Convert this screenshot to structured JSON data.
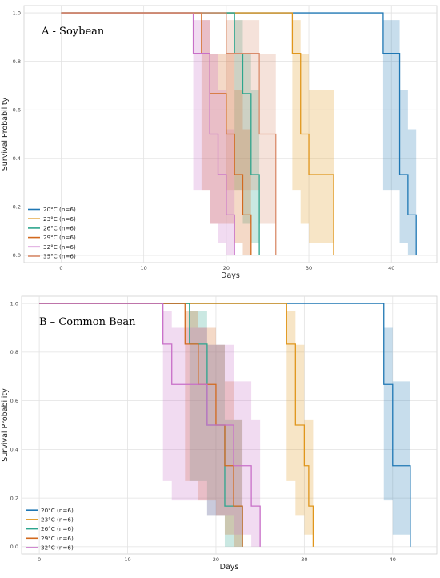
{
  "chart_data": [
    {
      "type": "line",
      "title": "A - Soybean",
      "xlabel": "Days",
      "ylabel": "Survival Probability",
      "xlim": [
        -4.5,
        45.5
      ],
      "ylim": [
        -0.03,
        1.03
      ],
      "xticks": [
        0,
        10,
        20,
        30,
        40
      ],
      "yticks": [
        0.0,
        0.2,
        0.4,
        0.6,
        0.8,
        1.0
      ],
      "grid": true,
      "legend_position": "lower-left",
      "series": [
        {
          "name": "20°C (n=6)",
          "color": "#1f77b4",
          "steps": [
            [
              0,
              1.0
            ],
            [
              39,
              0.833
            ],
            [
              41,
              0.333
            ],
            [
              42,
              0.167
            ],
            [
              43,
              0.0
            ]
          ],
          "ci": [
            [
              39,
              0.27,
              0.97
            ],
            [
              41,
              0.05,
              0.68
            ],
            [
              42,
              0.0,
              0.52
            ],
            [
              43,
              0.0,
              0.52
            ]
          ]
        },
        {
          "name": "23°C (n=6)",
          "color": "#e0961c",
          "steps": [
            [
              0,
              1.0
            ],
            [
              28,
              0.833
            ],
            [
              29,
              0.5
            ],
            [
              30,
              0.333
            ],
            [
              33,
              0.0
            ]
          ],
          "ci": [
            [
              28,
              0.27,
              0.97
            ],
            [
              29,
              0.13,
              0.83
            ],
            [
              30,
              0.05,
              0.68
            ],
            [
              33,
              0.05,
              0.68
            ]
          ]
        },
        {
          "name": "26°C (n=6)",
          "color": "#2ca58d",
          "steps": [
            [
              0,
              1.0
            ],
            [
              21,
              0.833
            ],
            [
              22,
              0.667
            ],
            [
              23,
              0.333
            ],
            [
              24,
              0.0
            ]
          ],
          "ci": [
            [
              21,
              0.27,
              0.97
            ],
            [
              22,
              0.13,
              0.83
            ],
            [
              23,
              0.05,
              0.68
            ],
            [
              24,
              0.05,
              0.68
            ]
          ]
        },
        {
          "name": "29°C (n=6)",
          "color": "#d2691e",
          "steps": [
            [
              0,
              1.0
            ],
            [
              17,
              0.833
            ],
            [
              18,
              0.667
            ],
            [
              20,
              0.5
            ],
            [
              21,
              0.333
            ],
            [
              22,
              0.167
            ],
            [
              23,
              0.0
            ]
          ],
          "ci": [
            [
              17,
              0.27,
              0.97
            ],
            [
              18,
              0.13,
              0.83
            ],
            [
              20,
              0.13,
              0.83
            ],
            [
              21,
              0.05,
              0.68
            ],
            [
              22,
              0.0,
              0.52
            ],
            [
              23,
              0.0,
              0.52
            ]
          ]
        },
        {
          "name": "32°C (n=6)",
          "color": "#c86fc8",
          "steps": [
            [
              0,
              1.0
            ],
            [
              16,
              0.833
            ],
            [
              18,
              0.5
            ],
            [
              19,
              0.333
            ],
            [
              20,
              0.167
            ],
            [
              21,
              0.0
            ]
          ],
          "ci": [
            [
              16,
              0.27,
              0.97
            ],
            [
              18,
              0.13,
              0.83
            ],
            [
              19,
              0.05,
              0.68
            ],
            [
              20,
              0.0,
              0.52
            ],
            [
              21,
              0.0,
              0.52
            ]
          ]
        },
        {
          "name": "35°C (n=6)",
          "color": "#d98b6a",
          "steps": [
            [
              0,
              1.0
            ],
            [
              20,
              0.833
            ],
            [
              24,
              0.5
            ],
            [
              26,
              0.0
            ]
          ],
          "ci": [
            [
              20,
              0.27,
              0.97
            ],
            [
              24,
              0.13,
              0.83
            ],
            [
              26,
              0.13,
              0.83
            ]
          ]
        }
      ]
    },
    {
      "type": "line",
      "title": "B – Common Bean",
      "xlabel": "Days",
      "ylabel": "Survival Probability",
      "xlim": [
        -2,
        45
      ],
      "ylim": [
        -0.03,
        1.03
      ],
      "xticks": [
        0,
        10,
        20,
        30,
        40
      ],
      "yticks": [
        0.0,
        0.2,
        0.4,
        0.6,
        0.8,
        1.0
      ],
      "grid": true,
      "legend_position": "lower-left",
      "series": [
        {
          "name": "20°C (n=6)",
          "color": "#1f77b4",
          "steps": [
            [
              0,
              1.0
            ],
            [
              39,
              0.667
            ],
            [
              40,
              0.333
            ],
            [
              42,
              0.0
            ]
          ],
          "ci": [
            [
              39,
              0.19,
              0.9
            ],
            [
              40,
              0.05,
              0.68
            ],
            [
              42,
              0.05,
              0.68
            ]
          ]
        },
        {
          "name": "23°C (n=6)",
          "color": "#e0961c",
          "steps": [
            [
              0,
              1.0
            ],
            [
              28,
              0.833
            ],
            [
              29,
              0.5
            ],
            [
              30,
              0.333
            ],
            [
              30.5,
              0.167
            ],
            [
              31,
              0.0
            ]
          ],
          "ci": [
            [
              28,
              0.27,
              0.97
            ],
            [
              29,
              0.13,
              0.83
            ],
            [
              30,
              0.05,
              0.52
            ],
            [
              31,
              0.05,
              0.52
            ]
          ]
        },
        {
          "name": "26°C (n=6)",
          "color": "#2ca58d",
          "steps": [
            [
              0,
              1.0
            ],
            [
              17,
              0.833
            ],
            [
              19,
              0.5
            ],
            [
              21,
              0.167
            ],
            [
              23,
              0.0
            ]
          ],
          "ci": [
            [
              17,
              0.27,
              0.97
            ],
            [
              19,
              0.13,
              0.83
            ],
            [
              21,
              0.0,
              0.52
            ],
            [
              23,
              0.0,
              0.52
            ]
          ]
        },
        {
          "name": "29°C (n=6)",
          "color": "#d2691e",
          "steps": [
            [
              0,
              1.0
            ],
            [
              16.5,
              0.833
            ],
            [
              18,
              0.667
            ],
            [
              20,
              0.5
            ],
            [
              21,
              0.333
            ],
            [
              22,
              0.167
            ],
            [
              23,
              0.0
            ]
          ],
          "ci": [
            [
              16.5,
              0.27,
              0.97
            ],
            [
              18,
              0.19,
              0.9
            ],
            [
              20,
              0.13,
              0.83
            ],
            [
              21,
              0.05,
              0.68
            ],
            [
              22,
              0.0,
              0.52
            ],
            [
              23,
              0.0,
              0.52
            ]
          ]
        },
        {
          "name": "32°C (n=6)",
          "color": "#c86fc8",
          "steps": [
            [
              0,
              1.0
            ],
            [
              14,
              0.833
            ],
            [
              15,
              0.667
            ],
            [
              19,
              0.5
            ],
            [
              22,
              0.333
            ],
            [
              24,
              0.167
            ],
            [
              25,
              0.0
            ]
          ],
          "ci": [
            [
              14,
              0.27,
              0.97
            ],
            [
              15,
              0.19,
              0.9
            ],
            [
              19,
              0.13,
              0.83
            ],
            [
              22,
              0.05,
              0.68
            ],
            [
              24,
              0.0,
              0.52
            ],
            [
              25,
              0.0,
              0.52
            ]
          ]
        }
      ]
    }
  ]
}
